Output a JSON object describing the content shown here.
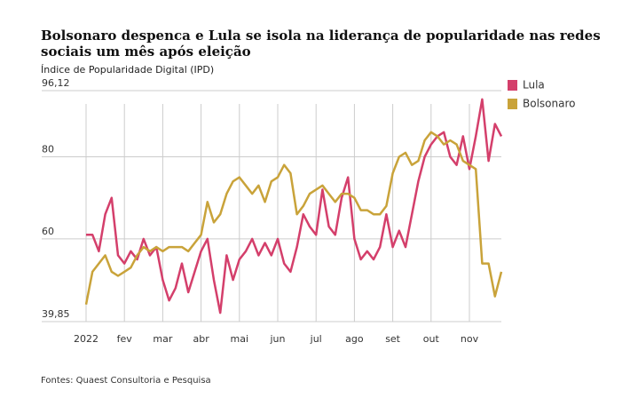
{
  "chart_data": {
    "type": "line",
    "title": "Bolsonaro despenca e Lula se isola na liderança de popularidade nas redes sociais um mês após eleição",
    "subtitle": "Índice de Popularidade Digital (IPD)",
    "source": "Fontes: Quaest Consultoria e Pesquisa",
    "categories": [
      "2022",
      null,
      null,
      null,
      null,
      null,
      "fev",
      null,
      null,
      null,
      null,
      null,
      "mar",
      null,
      null,
      null,
      null,
      null,
      "abr",
      null,
      null,
      null,
      null,
      null,
      "mai",
      null,
      null,
      null,
      null,
      null,
      "jun",
      null,
      null,
      null,
      null,
      null,
      "jul",
      null,
      null,
      null,
      null,
      null,
      "ago",
      null,
      null,
      null,
      null,
      null,
      "set",
      null,
      null,
      null,
      null,
      null,
      "out",
      null,
      null,
      null,
      null,
      null,
      "nov",
      null,
      null,
      null,
      null,
      null
    ],
    "series": [
      {
        "name": "Lula",
        "color": "#d43f6b",
        "values": [
          61,
          61,
          57,
          66,
          70,
          56,
          54,
          57,
          55,
          60,
          56,
          58,
          50,
          45,
          48,
          54,
          47,
          52,
          57,
          60,
          50,
          42,
          56,
          50,
          55,
          57,
          60,
          56,
          59,
          56,
          60,
          54,
          52,
          58,
          66,
          63,
          61,
          72,
          63,
          61,
          70,
          75,
          60,
          55,
          57,
          55,
          58,
          66,
          58,
          62,
          58,
          66,
          74,
          80,
          83,
          85,
          86,
          80,
          78,
          85,
          77,
          85,
          94,
          79,
          88,
          85
        ]
      },
      {
        "name": "Bolsonaro",
        "color": "#c9a33a",
        "values": [
          44,
          52,
          54,
          56,
          52,
          51,
          52,
          53,
          56,
          58,
          57,
          58,
          57,
          58,
          58,
          58,
          57,
          59,
          61,
          69,
          64,
          66,
          71,
          74,
          75,
          73,
          71,
          73,
          69,
          74,
          75,
          78,
          76,
          66,
          68,
          71,
          72,
          73,
          71,
          69,
          71,
          71,
          70,
          67,
          67,
          66,
          66,
          68,
          76,
          80,
          81,
          78,
          79,
          84,
          86,
          85,
          83,
          84,
          83,
          79,
          78,
          77,
          54,
          54,
          46,
          52
        ]
      }
    ],
    "ylim": [
      39.85,
      96.12
    ],
    "yticks": [
      {
        "value": 39.85,
        "label": "39,85"
      },
      60,
      80,
      {
        "value": 96.12,
        "label": "96,12"
      }
    ],
    "grid": true,
    "legend": "right"
  }
}
